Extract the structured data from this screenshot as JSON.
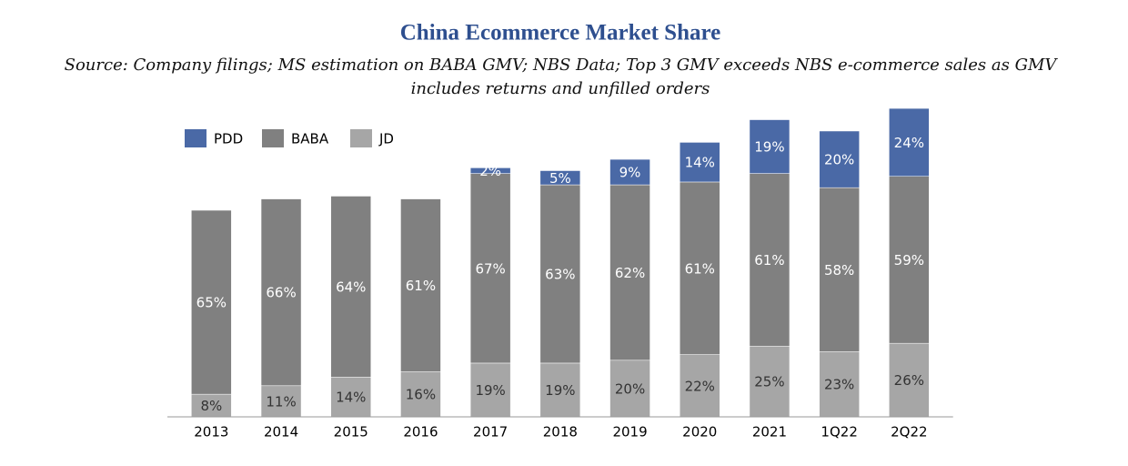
{
  "chart_data": {
    "type": "stacked_bar",
    "title": "China Ecommerce Market Share",
    "subtitle": [
      "Source: Company filings; MS estimation on BABA GMV; NBS Data; Top 3 GMV exceeds NBS e-commerce sales as GMV",
      "includes returns and unfilled orders"
    ],
    "categories": [
      "2013",
      "2014",
      "2015",
      "2016",
      "2017",
      "2018",
      "2019",
      "2020",
      "2021",
      "1Q22",
      "2Q22"
    ],
    "series": [
      {
        "name": "JD",
        "color": "#a6a6a6",
        "values": [
          8,
          11,
          14,
          16,
          19,
          19,
          20,
          22,
          25,
          23,
          26
        ],
        "value_labels": [
          "8%",
          "11%",
          "14%",
          "16%",
          "19%",
          "19%",
          "20%",
          "22%",
          "25%",
          "23%",
          "26%"
        ]
      },
      {
        "name": "BABA",
        "color": "#808080",
        "values": [
          65,
          66,
          64,
          61,
          67,
          63,
          62,
          61,
          61,
          58,
          59
        ],
        "value_labels": [
          "65%",
          "66%",
          "64%",
          "61%",
          "67%",
          "63%",
          "62%",
          "61%",
          "61%",
          "58%",
          "59%"
        ]
      },
      {
        "name": "PDD",
        "color": "#4a69a6",
        "values": [
          null,
          null,
          null,
          null,
          2,
          5,
          9,
          14,
          19,
          20,
          24
        ],
        "value_labels": [
          null,
          null,
          null,
          null,
          "2%",
          "5%",
          "9%",
          "14%",
          "19%",
          "20%",
          "24%"
        ]
      }
    ],
    "legend_order": [
      "PDD",
      "BABA",
      "JD"
    ],
    "ylim": [
      0,
      110
    ]
  }
}
